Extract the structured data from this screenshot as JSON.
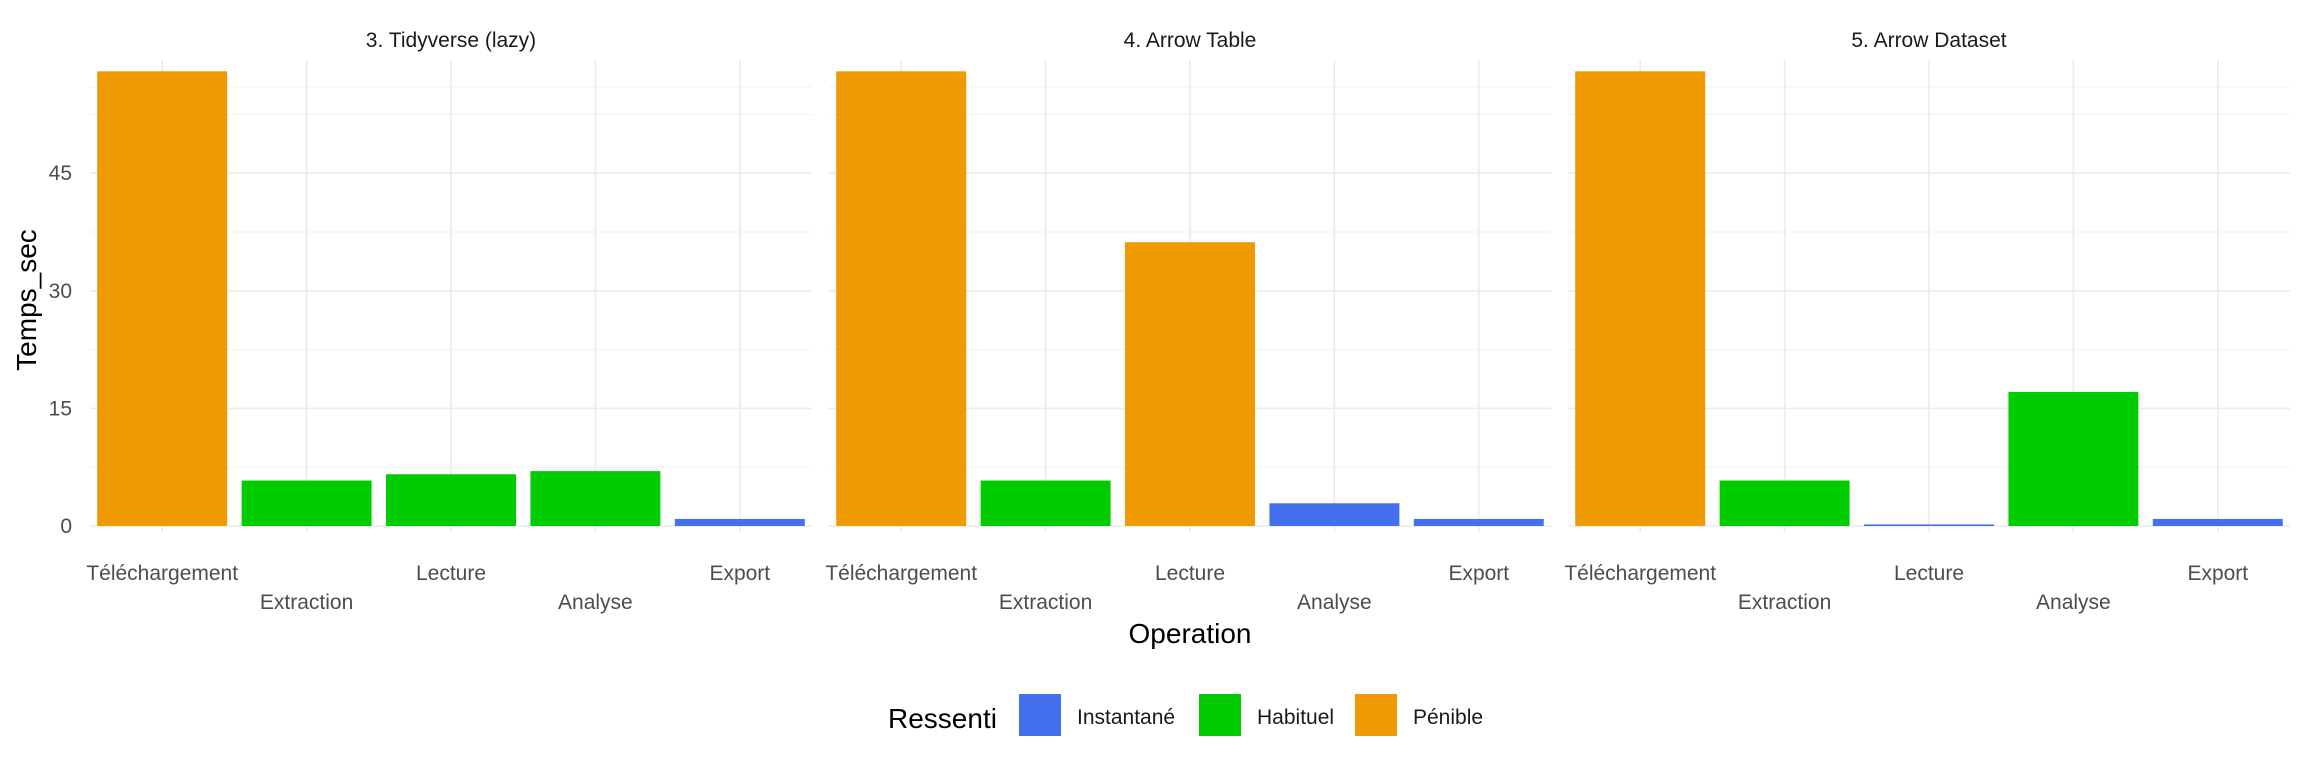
{
  "chart_data": {
    "type": "bar",
    "xlabel": "Operation",
    "ylabel": "Temps_sec",
    "ylim": [
      0,
      60
    ],
    "yticks": [
      0,
      15,
      30,
      45
    ],
    "grid": true,
    "categories": [
      "Téléchargement",
      "Extraction",
      "Lecture",
      "Analyse",
      "Export"
    ],
    "legend": {
      "title": "Ressenti",
      "position": "bottom",
      "entries": [
        {
          "label": "Instantané",
          "color": "#4470EE"
        },
        {
          "label": "Habituel",
          "color": "#00CC00"
        },
        {
          "label": "Pénible",
          "color": "#EE9A00"
        }
      ]
    },
    "panels": [
      {
        "title": "3. Tidyverse (lazy)",
        "values": [
          58,
          5.8,
          6.6,
          7.0,
          0.9
        ],
        "ressenti": [
          "Pénible",
          "Habituel",
          "Habituel",
          "Habituel",
          "Instantané"
        ]
      },
      {
        "title": "4. Arrow Table",
        "values": [
          58,
          5.8,
          36.2,
          2.9,
          0.9
        ],
        "ressenti": [
          "Pénible",
          "Habituel",
          "Pénible",
          "Instantané",
          "Instantané"
        ]
      },
      {
        "title": "5. Arrow Dataset",
        "values": [
          58,
          5.8,
          0.2,
          17.1,
          0.9
        ],
        "ressenti": [
          "Pénible",
          "Habituel",
          "Instantané",
          "Habituel",
          "Instantané"
        ]
      }
    ]
  }
}
